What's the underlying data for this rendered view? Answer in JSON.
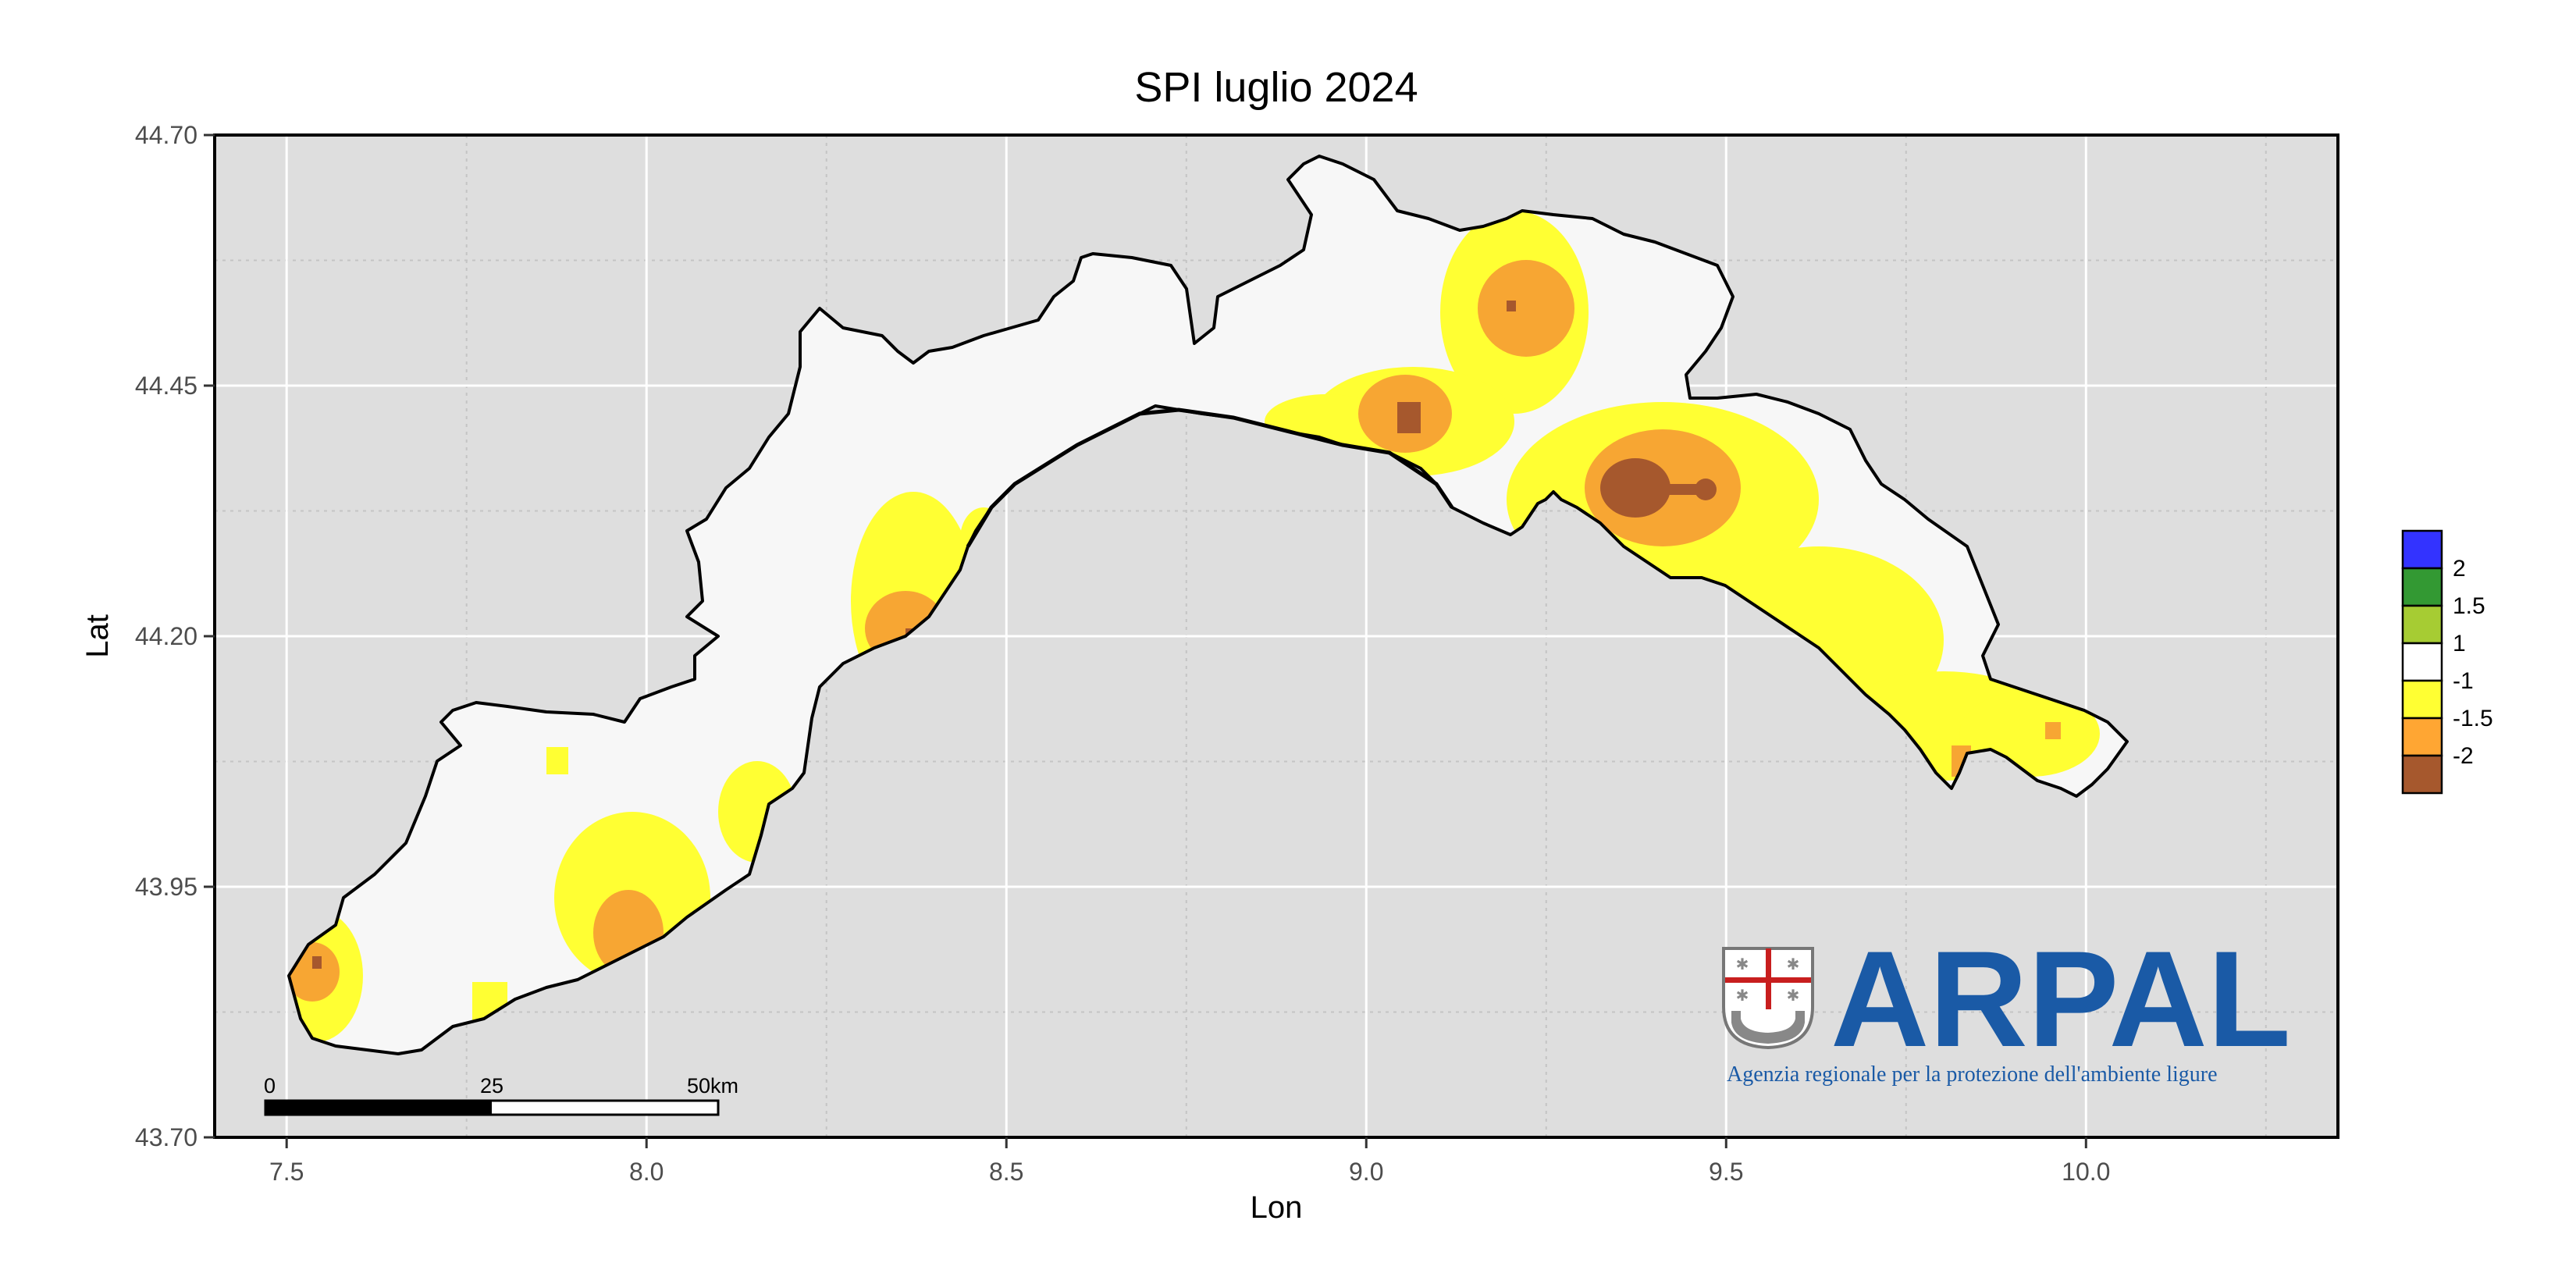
{
  "title": "SPI luglio 2024",
  "axes": {
    "xlabel": "Lon",
    "ylabel": "Lat",
    "x_ticks": [
      "7.5",
      "8.0",
      "8.5",
      "9.0",
      "9.5",
      "10.0"
    ],
    "y_ticks": [
      "44.70",
      "44.45",
      "44.20",
      "43.95",
      "43.70"
    ],
    "xlim": [
      7.4,
      10.35
    ],
    "ylim": [
      43.7,
      44.7
    ]
  },
  "legend": {
    "placement": "right",
    "labels": [
      "2",
      "1.5",
      "1",
      "-1",
      "-1.5",
      "-2"
    ],
    "colors": [
      "#3333ff",
      "#339933",
      "#a6cc33",
      "#ffffff",
      "#ffff33",
      "#ffa633",
      "#a6582d"
    ]
  },
  "scalebar": {
    "labels": [
      "0",
      "25",
      "50km"
    ]
  },
  "logo": {
    "name": "ARPAL",
    "tagline": "Agenzia regionale per la protezione dell'ambiente ligure"
  },
  "colors": {
    "panel": "#dedede",
    "region": "#f7f7f7",
    "yellow": "#ffff33",
    "orange": "#f7a633",
    "brown": "#a6582d",
    "brand": "#1a5aa6"
  }
}
